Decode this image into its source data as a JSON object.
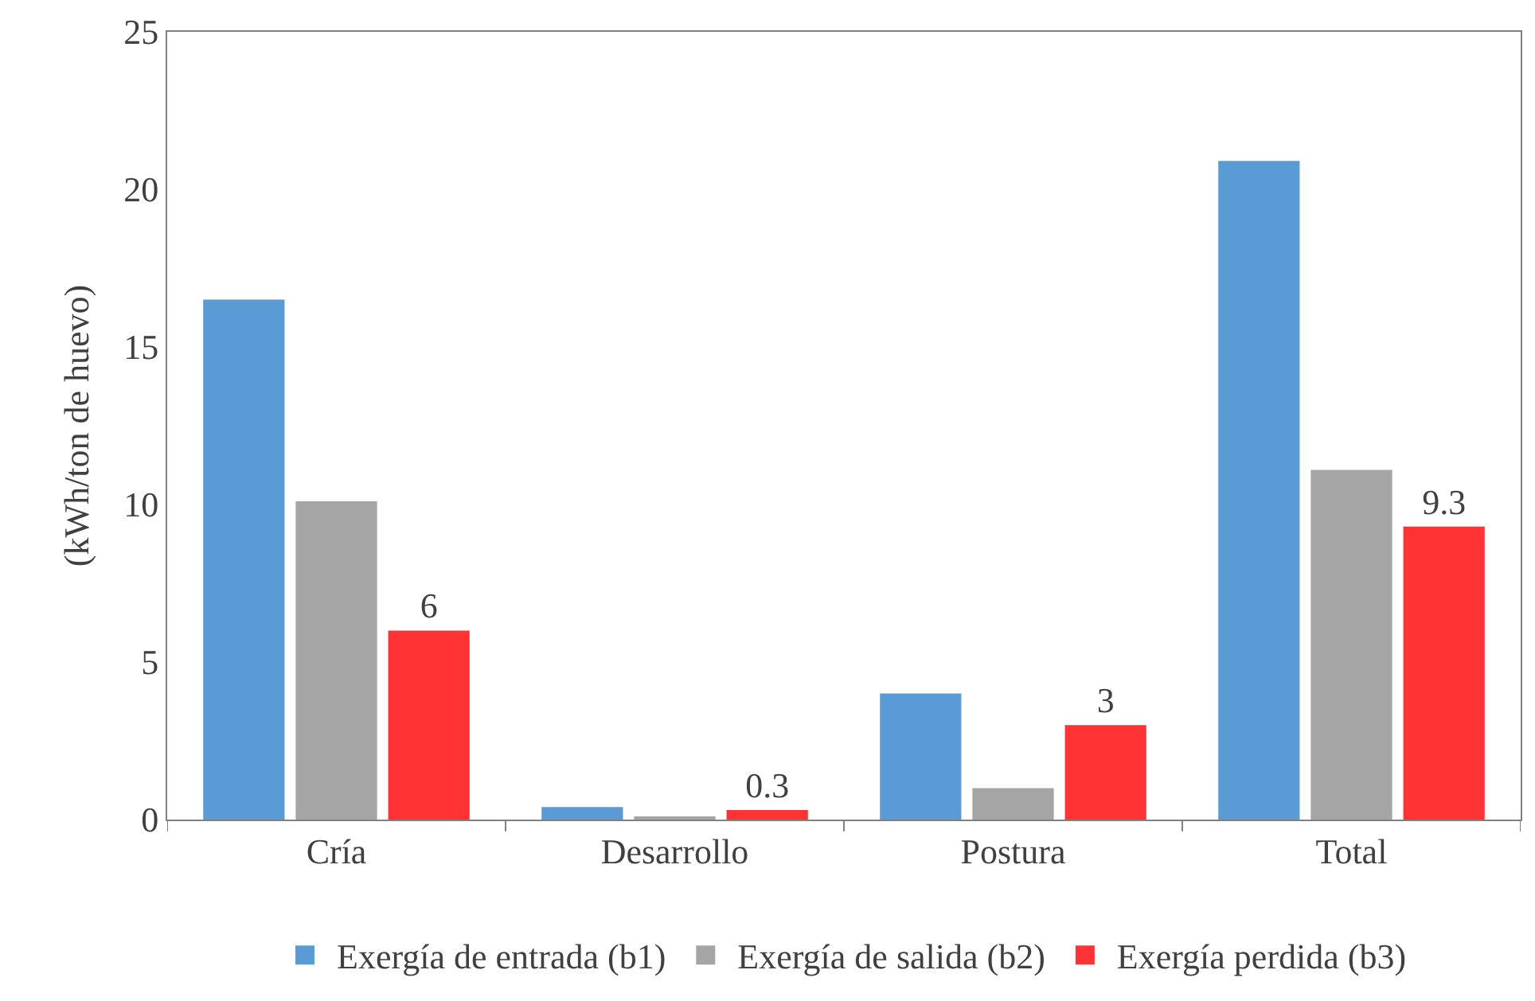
{
  "chart_data": {
    "type": "bar",
    "ylabel": "(kWh/ton de huevo)",
    "categories": [
      "Cría",
      "Desarrollo",
      "Postura",
      "Total"
    ],
    "series": [
      {
        "name": "Exergía de entrada (b1)",
        "color": "#5b9bd5",
        "values": [
          16.5,
          0.4,
          4.0,
          20.9
        ]
      },
      {
        "name": "Exergía de salida (b2)",
        "color": "#a5a5a5",
        "values": [
          10.1,
          0.1,
          1.0,
          11.1
        ]
      },
      {
        "name": "Exergía perdida (b3)",
        "color": "#ff3333",
        "values": [
          6,
          0.3,
          3,
          9.3
        ],
        "value_labels": [
          "6",
          "0.3",
          "3",
          "9.3"
        ]
      }
    ],
    "ylim": [
      0,
      25
    ],
    "yticks": [
      0,
      5,
      10,
      15,
      20,
      25
    ],
    "grid": false,
    "legend": "bottom"
  }
}
